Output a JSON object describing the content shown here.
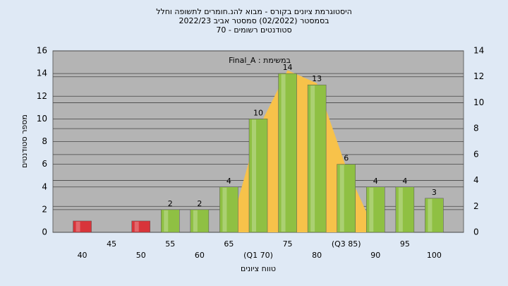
{
  "chart_data": {
    "type": "bar",
    "title": [
      "היסטוגרמת ציונים בקורס - מבוא להנ.חומרים לתשופה וחלל",
      "בסמסטר  (02/2022)  סמסטר אביב 2022/23",
      "סטודנטים רשומים - 70"
    ],
    "annotation": "Final_A : במשימת",
    "x_label": "טווח ציונים",
    "y_label": "מספר סטודנטים",
    "categories": [
      "40",
      "45",
      "50",
      "55",
      "60",
      "65",
      "(Q1 70)",
      "75",
      "80",
      "(Q3 85)",
      "90",
      "95",
      "100"
    ],
    "series": [
      {
        "values": [
          1,
          0,
          1,
          2,
          2,
          4,
          10,
          14,
          13,
          6,
          4,
          4,
          3
        ],
        "value_labels": [
          null,
          null,
          null,
          "2",
          "2",
          "4",
          "10",
          "14",
          "13",
          "6",
          "4",
          "4",
          "3"
        ],
        "colors": [
          "#d8343a",
          "#d8343a",
          "#d8343a",
          "#8fc043",
          "#8fc043",
          "#8fc043",
          "#8fc043",
          "#8fc043",
          "#8fc043",
          "#8fc043",
          "#8fc043",
          "#8fc043",
          "#8fc043"
        ]
      },
      {
        "type": "area",
        "axis": "y2",
        "color": "#f7c24a",
        "values": [
          null,
          null,
          null,
          null,
          null,
          0,
          8,
          12.5,
          11.5,
          5,
          0,
          null,
          null
        ]
      }
    ],
    "ylim": [
      0,
      16
    ],
    "yticks": [
      0,
      2,
      4,
      6,
      8,
      10,
      12,
      14,
      16
    ],
    "y2lim": [
      0,
      14
    ],
    "y2ticks": [
      0,
      2,
      4,
      6,
      8,
      10,
      12,
      14
    ],
    "grid": true
  }
}
